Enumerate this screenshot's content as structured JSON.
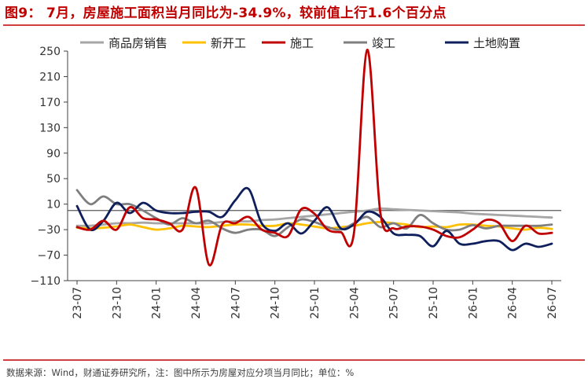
{
  "header": {
    "title": "图9： 7月，房屋施工面积当月同比为-34.9%，较前值上行1.6个百分点"
  },
  "footer": {
    "source": "数据来源：Wind，财通证券研究所，注：图中所示为房屋对应分项当月同比；单位：%"
  },
  "colors": {
    "title": "#C00000",
    "rule": "#C00000",
    "axis": "#404040"
  },
  "chart_data": {
    "type": "line",
    "title": "",
    "xlabel": "",
    "ylabel": "",
    "ylim": [
      -110,
      250
    ],
    "yticks": [
      -110,
      -70,
      -30,
      10,
      50,
      90,
      130,
      170,
      210,
      250
    ],
    "ytick_labels": [
      "−110",
      "−70",
      "−30",
      "10",
      "50",
      "90",
      "130",
      "170",
      "210",
      "250"
    ],
    "grid": false,
    "legend_position": "top",
    "x_tick_labels": [
      "23-07",
      "23-10",
      "24-01",
      "24-04",
      "24-07",
      "24-10",
      "25-01",
      "25-04",
      "25-07",
      "25-10",
      "26-01",
      "26-04",
      "26-07"
    ],
    "x": [
      "23-07",
      "23-08",
      "23-09",
      "23-10",
      "23-11",
      "23-12",
      "24-01",
      "24-02",
      "24-03",
      "24-04",
      "24-05",
      "24-06",
      "24-07",
      "24-08",
      "24-09",
      "24-10",
      "24-11",
      "24-12",
      "25-01",
      "25-02",
      "25-03",
      "25-04",
      "25-05",
      "25-06",
      "25-07",
      "25-08",
      "25-09",
      "25-10",
      "25-11",
      "25-12",
      "26-01",
      "26-02",
      "26-03",
      "26-04",
      "26-05",
      "26-06",
      "26-07"
    ],
    "series": [
      {
        "name": "商品房销售",
        "color": "#A6A6A6",
        "values": [
          -24,
          -24,
          -22,
          -20,
          -20,
          -19,
          -20,
          -20,
          -20,
          -20,
          -20,
          -18,
          -17,
          -17,
          -15,
          -14,
          -12,
          -10,
          -8,
          -6,
          -4,
          -2,
          0,
          3,
          2,
          1,
          0,
          -1,
          -2,
          -3,
          -5,
          -6,
          -7,
          -8,
          -9,
          -10,
          -11
        ]
      },
      {
        "name": "新开工",
        "color": "#FFC000",
        "values": [
          -27,
          -28,
          -27,
          -25,
          -22,
          -26,
          -30,
          -28,
          -24,
          -25,
          -26,
          -24,
          -22,
          -22,
          -24,
          -24,
          -20,
          -22,
          -25,
          -28,
          -26,
          -24,
          -20,
          -18,
          -20,
          -22,
          -26,
          -25,
          -26,
          -22,
          -22,
          -24,
          -25,
          -28,
          -30,
          -27,
          -29
        ]
      },
      {
        "name": "施工",
        "color": "#C00000",
        "values": [
          -26,
          -30,
          -16,
          -30,
          5,
          -12,
          -14,
          -20,
          -30,
          36,
          -85,
          -22,
          -20,
          -10,
          -30,
          -35,
          -40,
          2,
          -5,
          -30,
          -34,
          -35,
          252,
          -4,
          -28,
          -25,
          -25,
          -30,
          -40,
          -42,
          -30,
          -15,
          -20,
          -48,
          -24,
          -36,
          -35
        ]
      },
      {
        "name": "竣工",
        "color": "#7F7F7F",
        "values": [
          32,
          10,
          22,
          10,
          10,
          0,
          -12,
          -22,
          -12,
          -20,
          -16,
          -28,
          -35,
          -30,
          -30,
          -40,
          -26,
          -14,
          -18,
          -26,
          -30,
          -20,
          -10,
          -26,
          -20,
          -28,
          -7,
          -20,
          -30,
          -30,
          -23,
          -28,
          -24,
          -24,
          -24,
          -24,
          -22
        ]
      },
      {
        "name": "土地购置",
        "color": "#0F1F5C",
        "values": [
          7,
          -30,
          -16,
          12,
          -4,
          12,
          0,
          -4,
          -4,
          -2,
          -2,
          -10,
          16,
          34,
          -20,
          -32,
          -20,
          -36,
          -16,
          5,
          -28,
          -22,
          -2,
          -10,
          -36,
          -38,
          -40,
          -56,
          -32,
          -52,
          -52,
          -48,
          -48,
          -62,
          -52,
          -57,
          -52
        ]
      }
    ]
  }
}
